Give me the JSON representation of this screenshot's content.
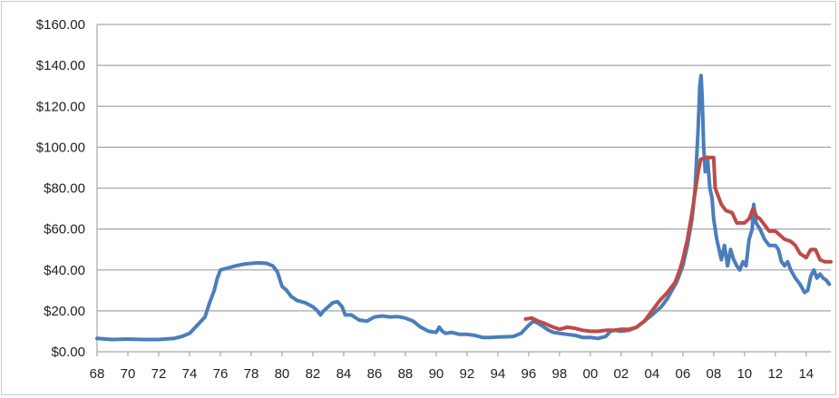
{
  "chart_data": {
    "type": "line",
    "title": "",
    "xlabel": "",
    "ylabel": "",
    "ylim": [
      0,
      160
    ],
    "xlim": [
      1968,
      2015.6
    ],
    "grid": "horizontal",
    "legend": "none",
    "y_ticks": [
      "$0.00",
      "$20.00",
      "$40.00",
      "$60.00",
      "$80.00",
      "$100.00",
      "$120.00",
      "$140.00",
      "$160.00"
    ],
    "y_tick_values": [
      0,
      20,
      40,
      60,
      80,
      100,
      120,
      140,
      160
    ],
    "x_ticks": [
      "68",
      "70",
      "72",
      "74",
      "76",
      "78",
      "80",
      "82",
      "84",
      "86",
      "88",
      "90",
      "92",
      "94",
      "96",
      "98",
      "00",
      "02",
      "04",
      "06",
      "08",
      "10",
      "12",
      "14"
    ],
    "x_tick_values": [
      1968,
      1970,
      1972,
      1974,
      1976,
      1978,
      1980,
      1982,
      1984,
      1986,
      1988,
      1990,
      1992,
      1994,
      1996,
      1998,
      2000,
      2002,
      2004,
      2006,
      2008,
      2010,
      2012,
      2014
    ],
    "series": [
      {
        "color": "#4a7ebb",
        "points": [
          [
            1968.0,
            6.5
          ],
          [
            1969.0,
            6.0
          ],
          [
            1970.0,
            6.2
          ],
          [
            1971.0,
            6.0
          ],
          [
            1972.0,
            6.0
          ],
          [
            1973.0,
            6.5
          ],
          [
            1973.5,
            7.5
          ],
          [
            1974.0,
            9.0
          ],
          [
            1974.5,
            13.0
          ],
          [
            1975.0,
            17.0
          ],
          [
            1975.3,
            24.0
          ],
          [
            1975.6,
            30.0
          ],
          [
            1975.8,
            36.0
          ],
          [
            1976.0,
            40.0
          ],
          [
            1976.5,
            41.0
          ],
          [
            1977.0,
            42.0
          ],
          [
            1977.5,
            42.8
          ],
          [
            1978.0,
            43.2
          ],
          [
            1978.5,
            43.5
          ],
          [
            1979.0,
            43.2
          ],
          [
            1979.4,
            42.0
          ],
          [
            1979.7,
            39.0
          ],
          [
            1980.0,
            32.0
          ],
          [
            1980.3,
            30.0
          ],
          [
            1980.6,
            27.0
          ],
          [
            1981.0,
            25.0
          ],
          [
            1981.5,
            24.0
          ],
          [
            1982.0,
            22.0
          ],
          [
            1982.3,
            20.0
          ],
          [
            1982.5,
            18.0
          ],
          [
            1982.7,
            20.0
          ],
          [
            1983.0,
            22.0
          ],
          [
            1983.3,
            24.0
          ],
          [
            1983.6,
            24.5
          ],
          [
            1983.9,
            22.0
          ],
          [
            1984.1,
            18.0
          ],
          [
            1984.5,
            18.0
          ],
          [
            1985.0,
            15.5
          ],
          [
            1985.5,
            15.0
          ],
          [
            1986.0,
            17.0
          ],
          [
            1986.5,
            17.5
          ],
          [
            1987.0,
            17.0
          ],
          [
            1987.5,
            17.2
          ],
          [
            1988.0,
            16.5
          ],
          [
            1988.5,
            15.0
          ],
          [
            1989.0,
            12.0
          ],
          [
            1989.5,
            10.0
          ],
          [
            1990.0,
            9.5
          ],
          [
            1990.2,
            12.0
          ],
          [
            1990.4,
            10.0
          ],
          [
            1990.6,
            9.0
          ],
          [
            1991.0,
            9.5
          ],
          [
            1991.5,
            8.5
          ],
          [
            1992.0,
            8.5
          ],
          [
            1992.5,
            8.0
          ],
          [
            1993.0,
            7.0
          ],
          [
            1993.5,
            7.0
          ],
          [
            1994.0,
            7.2
          ],
          [
            1994.5,
            7.3
          ],
          [
            1995.0,
            7.5
          ],
          [
            1995.5,
            9.0
          ],
          [
            1996.0,
            13.0
          ],
          [
            1996.3,
            15.0
          ],
          [
            1996.6,
            14.0
          ],
          [
            1997.0,
            12.0
          ],
          [
            1997.3,
            10.5
          ],
          [
            1997.6,
            9.5
          ],
          [
            1998.0,
            9.0
          ],
          [
            1998.5,
            8.5
          ],
          [
            1999.0,
            8.0
          ],
          [
            1999.5,
            7.0
          ],
          [
            2000.0,
            7.0
          ],
          [
            2000.5,
            6.5
          ],
          [
            2001.0,
            7.5
          ],
          [
            2001.3,
            10.0
          ],
          [
            2001.6,
            10.5
          ],
          [
            2002.0,
            10.0
          ],
          [
            2002.5,
            10.5
          ],
          [
            2003.0,
            12.0
          ],
          [
            2003.5,
            15.0
          ],
          [
            2004.0,
            18.0
          ],
          [
            2004.3,
            20.0
          ],
          [
            2004.6,
            22.0
          ],
          [
            2005.0,
            26.0
          ],
          [
            2005.3,
            30.0
          ],
          [
            2005.6,
            34.0
          ],
          [
            2006.0,
            42.0
          ],
          [
            2006.3,
            52.0
          ],
          [
            2006.6,
            65.0
          ],
          [
            2006.8,
            80.0
          ],
          [
            2006.9,
            95.0
          ],
          [
            2007.0,
            110.0
          ],
          [
            2007.1,
            130.0
          ],
          [
            2007.18,
            135.0
          ],
          [
            2007.25,
            125.0
          ],
          [
            2007.35,
            100.0
          ],
          [
            2007.45,
            88.0
          ],
          [
            2007.6,
            95.0
          ],
          [
            2007.75,
            80.0
          ],
          [
            2007.9,
            75.0
          ],
          [
            2008.0,
            65.0
          ],
          [
            2008.2,
            55.0
          ],
          [
            2008.35,
            50.0
          ],
          [
            2008.5,
            45.0
          ],
          [
            2008.7,
            52.0
          ],
          [
            2008.9,
            42.0
          ],
          [
            2009.1,
            50.0
          ],
          [
            2009.3,
            45.0
          ],
          [
            2009.5,
            42.0
          ],
          [
            2009.7,
            40.0
          ],
          [
            2009.9,
            44.0
          ],
          [
            2010.1,
            42.0
          ],
          [
            2010.3,
            55.0
          ],
          [
            2010.5,
            60.0
          ],
          [
            2010.6,
            72.0
          ],
          [
            2010.75,
            63.0
          ],
          [
            2011.0,
            60.0
          ],
          [
            2011.3,
            55.0
          ],
          [
            2011.6,
            52.0
          ],
          [
            2012.0,
            52.0
          ],
          [
            2012.2,
            50.0
          ],
          [
            2012.4,
            44.0
          ],
          [
            2012.6,
            42.0
          ],
          [
            2012.8,
            44.0
          ],
          [
            2013.0,
            40.0
          ],
          [
            2013.3,
            36.0
          ],
          [
            2013.6,
            33.0
          ],
          [
            2013.9,
            29.0
          ],
          [
            2014.1,
            30.0
          ],
          [
            2014.3,
            37.0
          ],
          [
            2014.5,
            40.0
          ],
          [
            2014.7,
            36.0
          ],
          [
            2014.9,
            38.0
          ],
          [
            2015.1,
            36.0
          ],
          [
            2015.3,
            35.0
          ],
          [
            2015.5,
            33.0
          ]
        ]
      },
      {
        "color": "#be4b48",
        "points": [
          [
            1995.8,
            16.0
          ],
          [
            1996.2,
            16.5
          ],
          [
            1996.6,
            15.0
          ],
          [
            1997.0,
            14.0
          ],
          [
            1997.3,
            13.0
          ],
          [
            1997.6,
            12.0
          ],
          [
            1998.0,
            11.0
          ],
          [
            1998.5,
            12.0
          ],
          [
            1999.0,
            11.5
          ],
          [
            1999.5,
            10.5
          ],
          [
            2000.0,
            10.0
          ],
          [
            2000.5,
            10.0
          ],
          [
            2001.0,
            10.5
          ],
          [
            2001.5,
            10.5
          ],
          [
            2002.0,
            11.0
          ],
          [
            2002.5,
            11.0
          ],
          [
            2003.0,
            12.0
          ],
          [
            2003.5,
            15.0
          ],
          [
            2004.0,
            20.0
          ],
          [
            2004.5,
            25.0
          ],
          [
            2005.0,
            29.0
          ],
          [
            2005.5,
            34.0
          ],
          [
            2005.8,
            40.0
          ],
          [
            2006.0,
            45.0
          ],
          [
            2006.3,
            55.0
          ],
          [
            2006.6,
            68.0
          ],
          [
            2006.8,
            78.0
          ],
          [
            2007.0,
            88.0
          ],
          [
            2007.15,
            94.0
          ],
          [
            2007.5,
            95.0
          ],
          [
            2008.0,
            95.0
          ],
          [
            2008.1,
            80.0
          ],
          [
            2008.3,
            76.0
          ],
          [
            2008.5,
            72.0
          ],
          [
            2008.8,
            69.0
          ],
          [
            2009.2,
            68.0
          ],
          [
            2009.5,
            63.0
          ],
          [
            2010.0,
            63.0
          ],
          [
            2010.3,
            65.0
          ],
          [
            2010.55,
            70.0
          ],
          [
            2010.8,
            66.0
          ],
          [
            2011.0,
            65.0
          ],
          [
            2011.3,
            62.0
          ],
          [
            2011.6,
            59.0
          ],
          [
            2012.0,
            59.0
          ],
          [
            2012.3,
            57.0
          ],
          [
            2012.6,
            55.0
          ],
          [
            2013.0,
            54.0
          ],
          [
            2013.3,
            52.0
          ],
          [
            2013.6,
            48.0
          ],
          [
            2014.0,
            46.0
          ],
          [
            2014.3,
            50.0
          ],
          [
            2014.6,
            50.0
          ],
          [
            2014.9,
            45.0
          ],
          [
            2015.2,
            44.0
          ],
          [
            2015.6,
            44.0
          ]
        ]
      }
    ]
  }
}
